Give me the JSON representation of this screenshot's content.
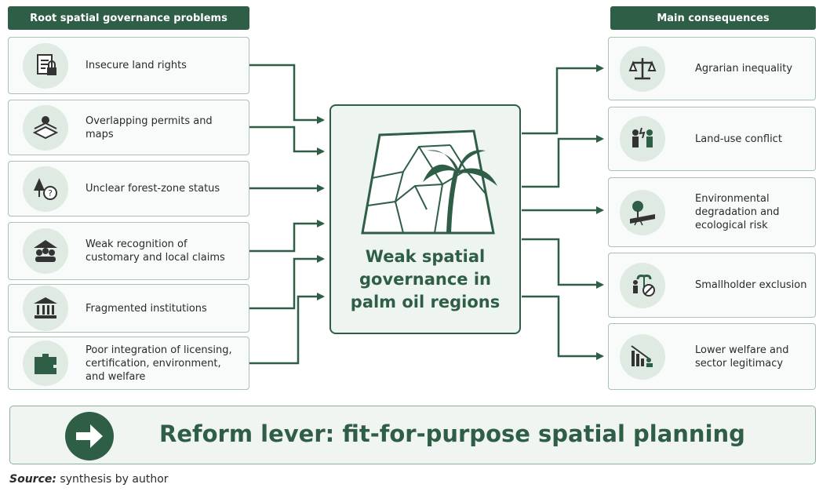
{
  "left_panel": {
    "title": "Root spatial governance problems",
    "items": [
      "Insecure land rights",
      "Overlapping permits and maps",
      "Unclear forest-zone status",
      "Weak recognition of customary and local claims",
      "Fragmented institutions",
      "Poor integration of licensing, certification, environment, and welfare"
    ]
  },
  "center": {
    "label": "Weak spatial governance in palm oil regions"
  },
  "right_panel": {
    "title": "Main consequences",
    "items": [
      "Agrarian inequality",
      "Land-use conflict",
      "Environmental degradation and ecological risk",
      "Smallholder exclusion",
      "Lower welfare and sector legitimacy"
    ]
  },
  "reform": {
    "label": "Reform lever: fit-for-purpose spatial planning"
  },
  "source": {
    "label": "Source:",
    "text": "synthesis by author"
  }
}
